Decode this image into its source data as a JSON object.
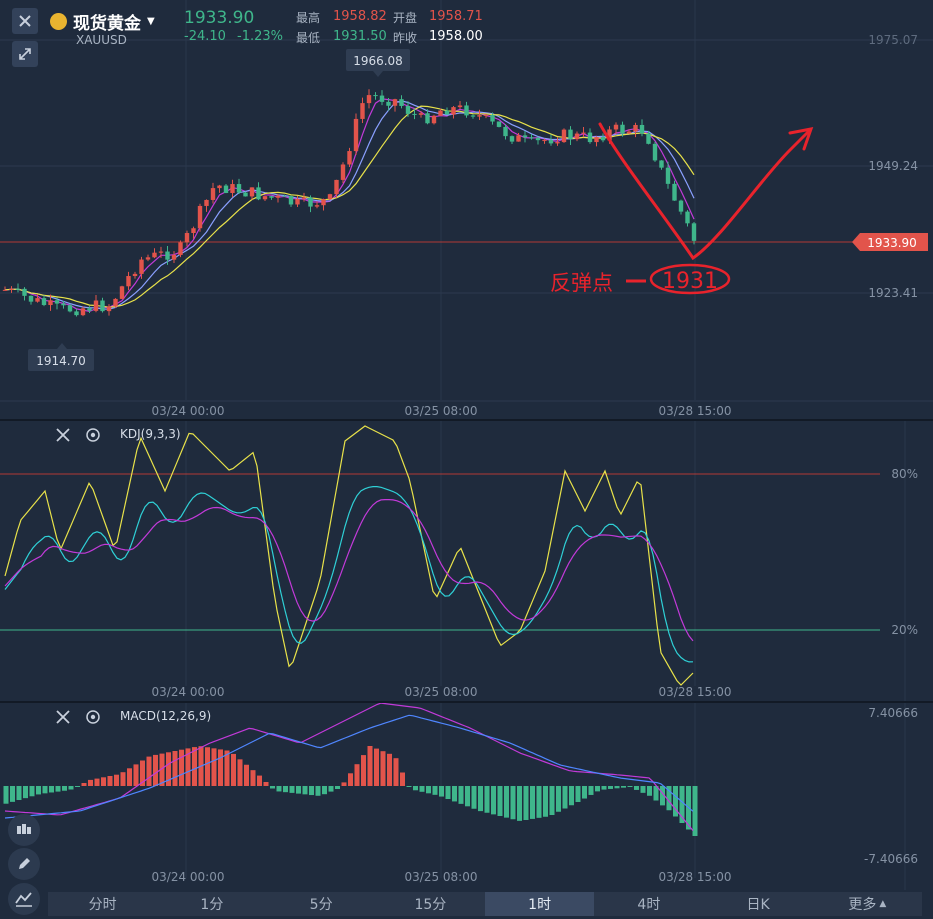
{
  "header": {
    "title": "现货黄金",
    "symbol": "XAUUSD",
    "price": "1933.90",
    "change": "-24.10",
    "change_pct": "-1.23%",
    "high_label": "最高",
    "high_value": "1958.82",
    "open_label": "开盘",
    "open_value": "1958.71",
    "low_label": "最低",
    "low_value": "1931.50",
    "prev_label": "昨收",
    "prev_value": "1958.00"
  },
  "main_chart": {
    "y_ticks": [
      "1975.07",
      "1949.24",
      "1923.41"
    ],
    "current_price_tag": "1933.90",
    "high_marker": "1966.08",
    "low_marker": "1914.70",
    "x_ticks": [
      "03/24 00:00",
      "03/25 08:00",
      "03/28 15:00"
    ],
    "annotation_text": "反弹点",
    "annotation_value": "1931"
  },
  "kdj": {
    "label": "KDJ(9,3,3)",
    "levels": [
      "80%",
      "20%"
    ],
    "x_ticks": [
      "03/24 00:00",
      "03/25 08:00",
      "03/28 15:00"
    ]
  },
  "macd": {
    "label": "MACD(12,26,9)",
    "y_ticks": [
      "7.40666",
      "-7.40666"
    ],
    "x_ticks": [
      "03/24 00:00",
      "03/25 08:00",
      "03/28 15:00"
    ]
  },
  "timeframes": [
    "分时",
    "1分",
    "5分",
    "15分",
    "1时",
    "4时",
    "日K",
    "更多"
  ],
  "active_timeframe": "1时",
  "colors": {
    "up": "#e2544b",
    "down": "#3fb68b",
    "k": "#e8e24a",
    "d": "#2fd0d6",
    "j": "#c23ad9"
  }
}
